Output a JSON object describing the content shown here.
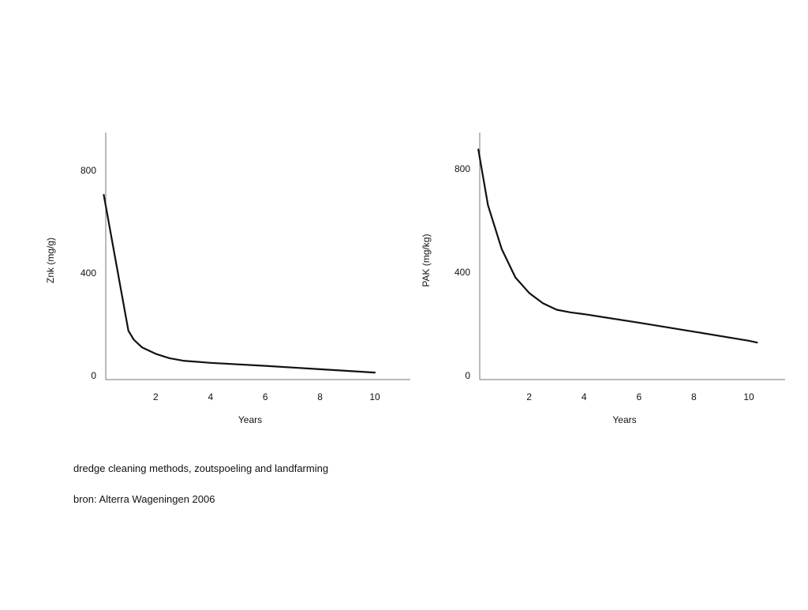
{
  "chart_data": [
    {
      "type": "line",
      "title": "",
      "xlabel": "Years",
      "ylabel": "Znk (mg/g)",
      "xlim": [
        0,
        11
      ],
      "ylim": [
        0,
        900
      ],
      "x_ticks": [
        2,
        4,
        6,
        8,
        10
      ],
      "y_ticks": [
        0,
        400,
        800
      ],
      "grid": false,
      "line_color": "#111111",
      "series": [
        {
          "x": [
            0.1,
            1.0,
            1.2,
            1.5,
            2.0,
            2.5,
            3.0,
            4.0,
            6.0,
            8.0,
            10.0
          ],
          "values": [
            705,
            175,
            140,
            110,
            85,
            68,
            58,
            50,
            38,
            25,
            12
          ]
        }
      ]
    },
    {
      "type": "line",
      "title": "",
      "xlabel": "Years",
      "ylabel": "PAK (mg/kg)",
      "xlim": [
        0,
        11
      ],
      "ylim": [
        0,
        900
      ],
      "x_ticks": [
        2,
        4,
        6,
        8,
        10
      ],
      "y_ticks": [
        0,
        400,
        800
      ],
      "grid": false,
      "line_color": "#111111",
      "series": [
        {
          "x": [
            0.15,
            0.5,
            1.0,
            1.5,
            2.0,
            2.5,
            3.0,
            3.5,
            4.0,
            6.0,
            8.0,
            10.0,
            10.3
          ],
          "values": [
            875,
            660,
            490,
            380,
            320,
            280,
            255,
            245,
            238,
            205,
            170,
            135,
            128
          ]
        }
      ]
    }
  ],
  "captions": {
    "line1": "dredge cleaning methods, zoutspoeling and landfarming",
    "line2": "bron: Alterra Wageningen 2006"
  }
}
